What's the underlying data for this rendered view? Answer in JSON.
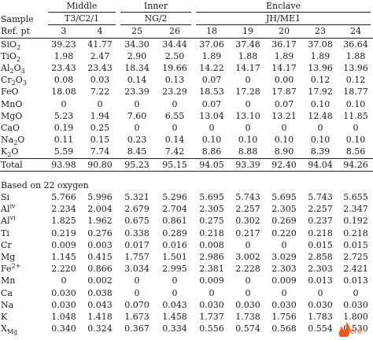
{
  "groups": {
    "sample_label": "Sample",
    "refpt_label": "Ref. pt",
    "middle": {
      "label": "Middle",
      "sample": "T3/C2/1"
    },
    "inner": {
      "label": "Inner",
      "sample": "NG/2"
    },
    "enclave": {
      "label": "Enclave",
      "sample": "JH/ME1"
    }
  },
  "ref_points": [
    "3",
    "4",
    "25",
    "26",
    "18",
    "19",
    "20",
    "23",
    "24"
  ],
  "oxide_rows": [
    {
      "base": "SiO",
      "sub": "2",
      "sub2": "",
      "tail": "",
      "values": [
        "39.23",
        "41.77",
        "34.30",
        "34.44",
        "37.06",
        "37.48",
        "36.17",
        "37.08",
        "36.64"
      ]
    },
    {
      "base": "TiO",
      "sub": "2",
      "sub2": "",
      "tail": "",
      "values": [
        "1.98",
        "2.47",
        "2.90",
        "2.50",
        "1.89",
        "1.88",
        "1.89",
        "1.89",
        "1.88"
      ]
    },
    {
      "base": "Al",
      "sub": "2",
      "mid": "O",
      "sub2": "3",
      "values": [
        "23.43",
        "23.43",
        "18.34",
        "19.66",
        "14.22",
        "14.17",
        "14.17",
        "13.96",
        "13.96"
      ]
    },
    {
      "base": "Cr",
      "sub": "2",
      "mid": "O",
      "sub2": "3",
      "values": [
        "0.08",
        "0.03",
        "0.14",
        "0.13",
        "0.07",
        "0",
        "0.00",
        "0.12",
        "0.12"
      ]
    },
    {
      "base": "FeO",
      "sub": "",
      "sub2": "",
      "values": [
        "18.08",
        "7.22",
        "23.39",
        "23.29",
        "18.53",
        "17.28",
        "17.87",
        "17.92",
        "18.77"
      ]
    },
    {
      "base": "MnO",
      "sub": "",
      "sub2": "",
      "values": [
        "0",
        "0",
        "0",
        "0",
        "0.07",
        "0",
        "0.07",
        "0.10",
        "0.10"
      ]
    },
    {
      "base": "MgO",
      "sub": "",
      "sub2": "",
      "values": [
        "5.23",
        "1.94",
        "7.60",
        "6.55",
        "13.04",
        "13.10",
        "13.21",
        "12.48",
        "11.85"
      ]
    },
    {
      "base": "CaO",
      "sub": "",
      "sub2": "",
      "values": [
        "0.19",
        "0.25",
        "0",
        "0",
        "0",
        "0",
        "0",
        "0",
        "0"
      ]
    },
    {
      "base": "Na",
      "sub": "2",
      "mid": "O",
      "sub2": "",
      "values": [
        "0.11",
        "0.15",
        "0.23",
        "0.14",
        "0.10",
        "0.10",
        "0.10",
        "0.10",
        "0.10"
      ]
    },
    {
      "base": "K",
      "sub": "2",
      "mid": "O",
      "sub2": "",
      "values": [
        "5.59",
        "7.74",
        "8.45",
        "7.42",
        "8.86",
        "8.88",
        "8.90",
        "8.39",
        "8.56"
      ]
    }
  ],
  "total_row": {
    "label": "Total",
    "values": [
      "93.98",
      "90.80",
      "95.23",
      "95.15",
      "94.05",
      "93.39",
      "92.40",
      "94.04",
      "94.26"
    ]
  },
  "basis_label": "Based on 22 oxygen",
  "cation_rows": [
    {
      "base": "Si",
      "sup": "",
      "sub": "",
      "values": [
        "5.766",
        "5.996",
        "5.321",
        "5.296",
        "5.695",
        "5.743",
        "5.695",
        "5.743",
        "5.655"
      ]
    },
    {
      "base": "Al",
      "sup": "iv",
      "sub": "",
      "values": [
        "2.234",
        "2.004",
        "2.679",
        "2.704",
        "2.305",
        "2.257",
        "2.305",
        "2.257",
        "2.347"
      ]
    },
    {
      "base": "Al",
      "sup": "vi",
      "sub": "",
      "values": [
        "1.825",
        "1.962",
        "0.675",
        "0.861",
        "0.275",
        "0.302",
        "0.269",
        "0.237",
        "0.192"
      ]
    },
    {
      "base": "Ti",
      "sup": "",
      "sub": "",
      "values": [
        "0.219",
        "0.276",
        "0.338",
        "0.289",
        "0.218",
        "0.217",
        "0.220",
        "0.218",
        "0.218"
      ]
    },
    {
      "base": "Cr",
      "sup": "",
      "sub": "",
      "values": [
        "0.009",
        "0.003",
        "0.017",
        "0.016",
        "0.008",
        "0",
        "0",
        "0.015",
        "0.015"
      ]
    },
    {
      "base": "Mg",
      "sup": "",
      "sub": "",
      "values": [
        "1.145",
        "0.415",
        "1.757",
        "1.501",
        "2.986",
        "3.002",
        "3.029",
        "2.858",
        "2.725"
      ]
    },
    {
      "base": "Fe",
      "sup": "2+",
      "sub": "",
      "values": [
        "2.220",
        "0.866",
        "3.034",
        "2.995",
        "2.381",
        "2.228",
        "2.303",
        "2.303",
        "2.421"
      ]
    },
    {
      "base": "Mn",
      "sup": "",
      "sub": "",
      "values": [
        "0",
        "0.002",
        "0",
        "0",
        "0.009",
        "0",
        "0.009",
        "0.013",
        "0.013"
      ]
    },
    {
      "base": "Ca",
      "sup": "",
      "sub": "",
      "values": [
        "0.030",
        "0.038",
        "0",
        "0",
        "0",
        "0",
        "0",
        "0",
        "0"
      ]
    },
    {
      "base": "Na",
      "sup": "",
      "sub": "",
      "values": [
        "0.030",
        "0.043",
        "0.070",
        "0.043",
        "0.030",
        "0.030",
        "0.030",
        "0.030",
        "0.030"
      ]
    },
    {
      "base": "K",
      "sup": "",
      "sub": "",
      "values": [
        "1.048",
        "1.418",
        "1.673",
        "1.458",
        "1.737",
        "1.738",
        "1.756",
        "1.783",
        "1.800"
      ]
    },
    {
      "base": "X",
      "sup": "",
      "sub": "Mg",
      "values": [
        "0.340",
        "0.324",
        "0.367",
        "0.334",
        "0.556",
        "0.574",
        "0.568",
        "0.554",
        "0.530"
      ]
    }
  ],
  "watermark": {
    "text": "cre",
    "color": "#f05a1e"
  }
}
